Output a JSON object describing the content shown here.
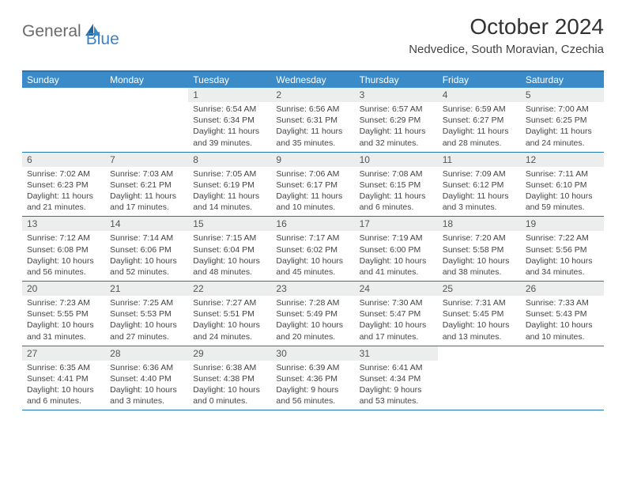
{
  "logo": {
    "part1": "General",
    "part2": "Blue"
  },
  "title": "October 2024",
  "location": "Nedvedice, South Moravian, Czechia",
  "colors": {
    "header_bg": "#3b8bc9",
    "border": "#2176b8",
    "daynum_bg": "#eceded",
    "logo_gray": "#6a6a6a",
    "logo_blue": "#3b82c4"
  },
  "day_names": [
    "Sunday",
    "Monday",
    "Tuesday",
    "Wednesday",
    "Thursday",
    "Friday",
    "Saturday"
  ],
  "weeks": [
    [
      null,
      null,
      {
        "n": "1",
        "sunrise": "6:54 AM",
        "sunset": "6:34 PM",
        "day_h": "11",
        "day_m": "39"
      },
      {
        "n": "2",
        "sunrise": "6:56 AM",
        "sunset": "6:31 PM",
        "day_h": "11",
        "day_m": "35"
      },
      {
        "n": "3",
        "sunrise": "6:57 AM",
        "sunset": "6:29 PM",
        "day_h": "11",
        "day_m": "32"
      },
      {
        "n": "4",
        "sunrise": "6:59 AM",
        "sunset": "6:27 PM",
        "day_h": "11",
        "day_m": "28"
      },
      {
        "n": "5",
        "sunrise": "7:00 AM",
        "sunset": "6:25 PM",
        "day_h": "11",
        "day_m": "24"
      }
    ],
    [
      {
        "n": "6",
        "sunrise": "7:02 AM",
        "sunset": "6:23 PM",
        "day_h": "11",
        "day_m": "21"
      },
      {
        "n": "7",
        "sunrise": "7:03 AM",
        "sunset": "6:21 PM",
        "day_h": "11",
        "day_m": "17"
      },
      {
        "n": "8",
        "sunrise": "7:05 AM",
        "sunset": "6:19 PM",
        "day_h": "11",
        "day_m": "14"
      },
      {
        "n": "9",
        "sunrise": "7:06 AM",
        "sunset": "6:17 PM",
        "day_h": "11",
        "day_m": "10"
      },
      {
        "n": "10",
        "sunrise": "7:08 AM",
        "sunset": "6:15 PM",
        "day_h": "11",
        "day_m": "6"
      },
      {
        "n": "11",
        "sunrise": "7:09 AM",
        "sunset": "6:12 PM",
        "day_h": "11",
        "day_m": "3"
      },
      {
        "n": "12",
        "sunrise": "7:11 AM",
        "sunset": "6:10 PM",
        "day_h": "10",
        "day_m": "59"
      }
    ],
    [
      {
        "n": "13",
        "sunrise": "7:12 AM",
        "sunset": "6:08 PM",
        "day_h": "10",
        "day_m": "56"
      },
      {
        "n": "14",
        "sunrise": "7:14 AM",
        "sunset": "6:06 PM",
        "day_h": "10",
        "day_m": "52"
      },
      {
        "n": "15",
        "sunrise": "7:15 AM",
        "sunset": "6:04 PM",
        "day_h": "10",
        "day_m": "48"
      },
      {
        "n": "16",
        "sunrise": "7:17 AM",
        "sunset": "6:02 PM",
        "day_h": "10",
        "day_m": "45"
      },
      {
        "n": "17",
        "sunrise": "7:19 AM",
        "sunset": "6:00 PM",
        "day_h": "10",
        "day_m": "41"
      },
      {
        "n": "18",
        "sunrise": "7:20 AM",
        "sunset": "5:58 PM",
        "day_h": "10",
        "day_m": "38"
      },
      {
        "n": "19",
        "sunrise": "7:22 AM",
        "sunset": "5:56 PM",
        "day_h": "10",
        "day_m": "34"
      }
    ],
    [
      {
        "n": "20",
        "sunrise": "7:23 AM",
        "sunset": "5:55 PM",
        "day_h": "10",
        "day_m": "31"
      },
      {
        "n": "21",
        "sunrise": "7:25 AM",
        "sunset": "5:53 PM",
        "day_h": "10",
        "day_m": "27"
      },
      {
        "n": "22",
        "sunrise": "7:27 AM",
        "sunset": "5:51 PM",
        "day_h": "10",
        "day_m": "24"
      },
      {
        "n": "23",
        "sunrise": "7:28 AM",
        "sunset": "5:49 PM",
        "day_h": "10",
        "day_m": "20"
      },
      {
        "n": "24",
        "sunrise": "7:30 AM",
        "sunset": "5:47 PM",
        "day_h": "10",
        "day_m": "17"
      },
      {
        "n": "25",
        "sunrise": "7:31 AM",
        "sunset": "5:45 PM",
        "day_h": "10",
        "day_m": "13"
      },
      {
        "n": "26",
        "sunrise": "7:33 AM",
        "sunset": "5:43 PM",
        "day_h": "10",
        "day_m": "10"
      }
    ],
    [
      {
        "n": "27",
        "sunrise": "6:35 AM",
        "sunset": "4:41 PM",
        "day_h": "10",
        "day_m": "6"
      },
      {
        "n": "28",
        "sunrise": "6:36 AM",
        "sunset": "4:40 PM",
        "day_h": "10",
        "day_m": "3"
      },
      {
        "n": "29",
        "sunrise": "6:38 AM",
        "sunset": "4:38 PM",
        "day_h": "10",
        "day_m": "0"
      },
      {
        "n": "30",
        "sunrise": "6:39 AM",
        "sunset": "4:36 PM",
        "day_h": "9",
        "day_m": "56"
      },
      {
        "n": "31",
        "sunrise": "6:41 AM",
        "sunset": "4:34 PM",
        "day_h": "9",
        "day_m": "53"
      },
      null,
      null
    ]
  ]
}
